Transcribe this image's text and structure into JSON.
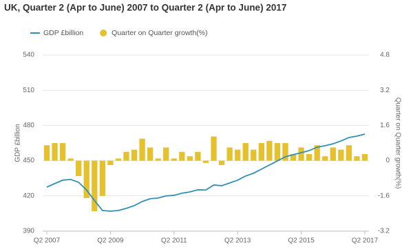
{
  "chart_data": {
    "type": "combo",
    "title": "UK, Quarter 2 (Apr to June) 2007 to Quarter 2 (Apr to June) 2017",
    "ylabel": "GDP £billion",
    "y2label": "Quarter on Quarter growth(%)",
    "categories": [
      "Q2 2007",
      null,
      null,
      null,
      null,
      null,
      null,
      null,
      "Q2 2009",
      null,
      null,
      null,
      null,
      null,
      null,
      null,
      "Q2 2011",
      null,
      null,
      null,
      null,
      null,
      null,
      null,
      "Q2 2013",
      null,
      null,
      null,
      null,
      null,
      null,
      null,
      "Q2 2015",
      null,
      null,
      null,
      null,
      null,
      null,
      null,
      "Q2 2017"
    ],
    "series": [
      {
        "name": "GDP £billion",
        "type": "line",
        "color": "#2f8fb5",
        "values": [
          427.5,
          430.5,
          433.4,
          434.0,
          431.6,
          425.0,
          416.0,
          407.6,
          407.0,
          407.6,
          409.4,
          411.7,
          415.2,
          417.6,
          418.2,
          420.0,
          420.5,
          422.3,
          423.4,
          425.2,
          425.0,
          429.3,
          428.7,
          431.0,
          433.4,
          436.9,
          439.3,
          442.8,
          446.3,
          449.8,
          453.3,
          455.1,
          456.8,
          458.6,
          461.5,
          462.7,
          464.4,
          466.8,
          469.7,
          470.9,
          472.6
        ]
      },
      {
        "name": "Quarter on Quarter growth(%)",
        "type": "bar",
        "axis": "y2",
        "color": "#e6c12f",
        "values": [
          0.7,
          0.8,
          0.8,
          0.1,
          -0.7,
          -1.7,
          -2.3,
          -1.6,
          -0.2,
          0.1,
          0.4,
          0.5,
          1.0,
          0.6,
          0.1,
          0.6,
          0.1,
          0.4,
          0.2,
          0.4,
          -0.1,
          1.1,
          -0.2,
          0.6,
          0.5,
          0.8,
          0.5,
          0.8,
          0.9,
          0.8,
          0.8,
          0.3,
          0.6,
          0.3,
          0.7,
          0.2,
          0.6,
          0.5,
          0.7,
          0.2,
          0.3
        ]
      }
    ],
    "ylim": [
      390,
      540
    ],
    "yticks": [
      390,
      420,
      450,
      480,
      510,
      540
    ],
    "y2lim": [
      -3.2,
      4.8
    ],
    "y2ticks": [
      -3.2,
      -1.6,
      0,
      1.6,
      3.2,
      4.8
    ],
    "grid": true
  }
}
